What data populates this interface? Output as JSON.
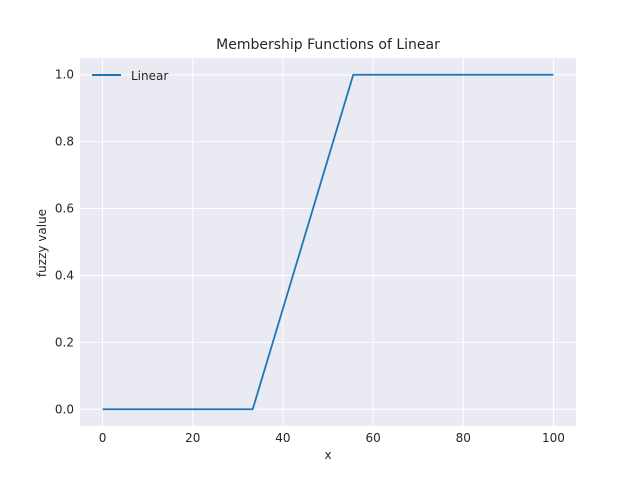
{
  "chart_data": {
    "type": "line",
    "title": "Membership Functions of Linear",
    "xlabel": "x",
    "ylabel": "fuzzy value",
    "xlim": [
      -5,
      105
    ],
    "ylim": [
      -0.05,
      1.05
    ],
    "xticks": [
      0,
      20,
      40,
      60,
      80,
      100
    ],
    "yticks": [
      0.0,
      0.2,
      0.4,
      0.6,
      0.8,
      1.0
    ],
    "xtick_labels": [
      "0",
      "20",
      "40",
      "60",
      "80",
      "100"
    ],
    "ytick_labels": [
      "0.0",
      "0.2",
      "0.4",
      "0.6",
      "0.8",
      "1.0"
    ],
    "grid": true,
    "legend_position": "top-left",
    "series": [
      {
        "name": "Linear",
        "color": "#1f77b4",
        "x": [
          0,
          33.3,
          55.6,
          100
        ],
        "y": [
          0.0,
          0.0,
          1.0,
          1.0
        ]
      }
    ],
    "background_color": "#eaeaf2",
    "grid_color": "#ffffff"
  }
}
